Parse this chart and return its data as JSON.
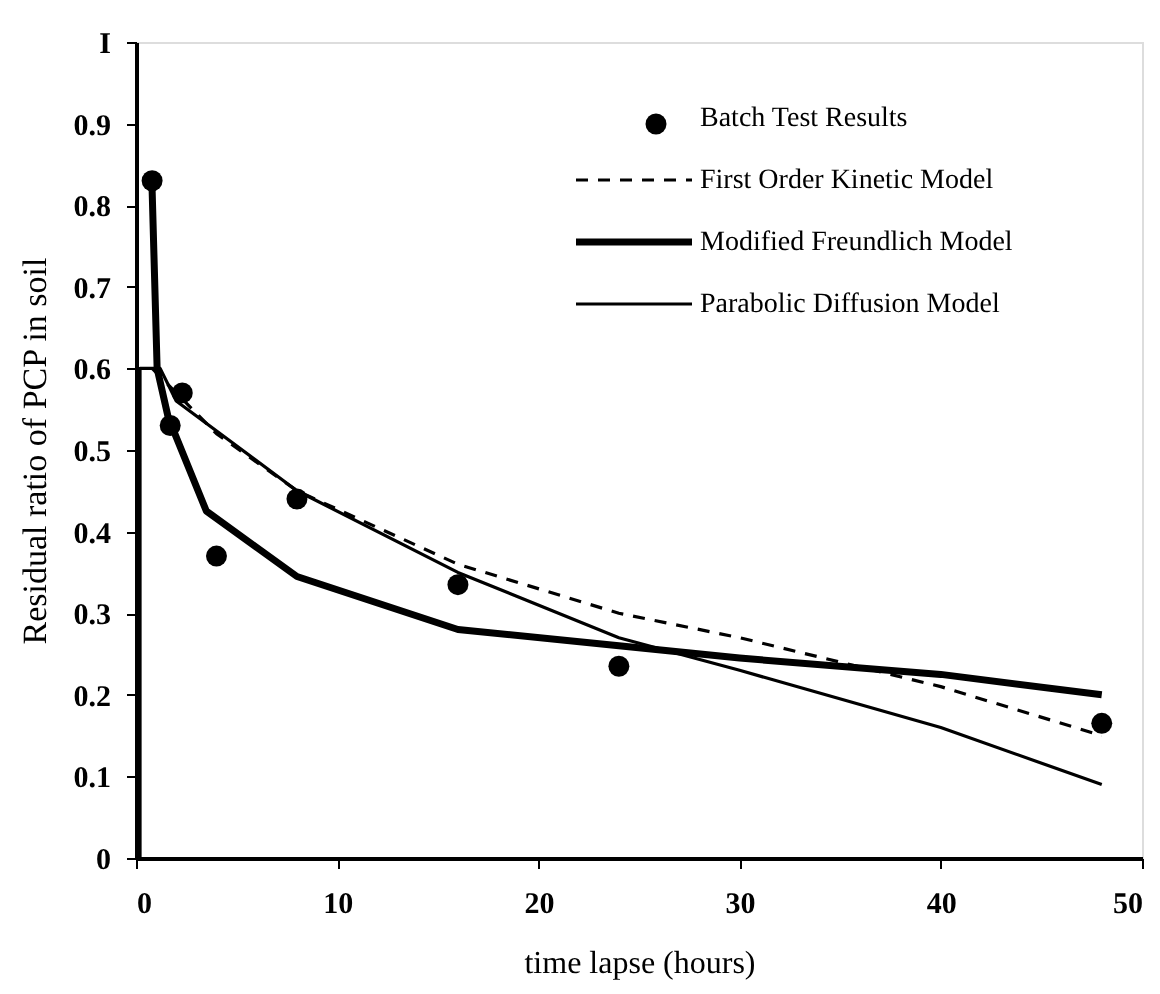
{
  "chart_data": {
    "type": "line",
    "xlabel": "time lapse (hours)",
    "ylabel": "Residual ratio of PCP in soil",
    "xlim": [
      0,
      50
    ],
    "xticks": [
      0,
      10,
      20,
      30,
      40,
      50
    ],
    "ylim": [
      0,
      1
    ],
    "yticks": [
      0,
      0.1,
      0.2,
      0.3,
      0.4,
      0.5,
      0.6,
      0.7,
      0.8,
      0.9,
      {
        "value": 1,
        "label": "I"
      }
    ],
    "grid": false,
    "legend": "top right",
    "series": [
      {
        "name": "Batch Test Results",
        "type": "scatter",
        "marker": "circle",
        "color": "#000000",
        "x": [
          0.8,
          1.7,
          2.3,
          4,
          8,
          16,
          24,
          48
        ],
        "values": [
          0.83,
          0.53,
          0.57,
          0.37,
          0.44,
          0.335,
          0.235,
          0.165
        ]
      },
      {
        "name": "First Order Kinetic Model",
        "type": "line",
        "line_style": "dashed",
        "color": "#000000",
        "x": [
          0.8,
          2,
          4,
          8,
          16,
          24,
          30,
          40,
          48
        ],
        "values": [
          0.6,
          0.57,
          0.52,
          0.45,
          0.36,
          0.3,
          0.27,
          0.21,
          0.15
        ]
      },
      {
        "name": "Modified Freundlich Model",
        "type": "line",
        "line_style": "solid",
        "color": "#000000",
        "x": [
          0.8,
          1.05,
          1.6,
          3.5,
          8,
          16,
          24,
          30,
          40,
          48
        ],
        "values": [
          0.82,
          0.6,
          0.54,
          0.425,
          0.345,
          0.28,
          0.26,
          0.245,
          0.225,
          0.2
        ]
      },
      {
        "name": "Parabolic Diffusion Model",
        "type": "line",
        "line_style": "solid",
        "color": "#000000",
        "x": [
          0.2,
          0.2,
          1.2,
          2,
          8,
          16,
          24,
          30,
          40,
          48
        ],
        "values": [
          0,
          0.6,
          0.6,
          0.56,
          0.45,
          0.35,
          0.27,
          0.23,
          0.16,
          0.09
        ]
      }
    ]
  }
}
